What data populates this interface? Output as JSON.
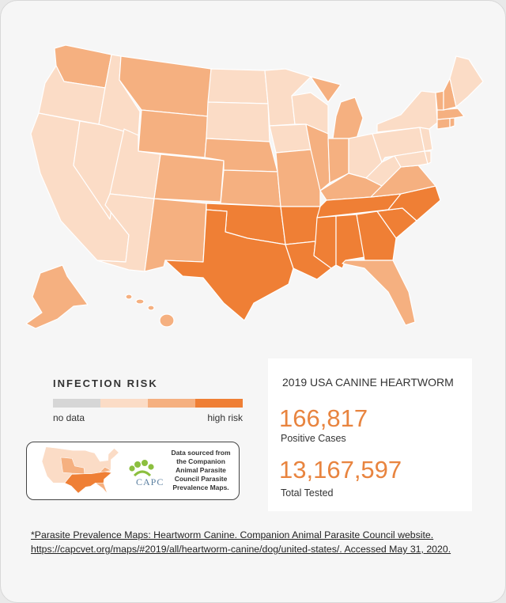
{
  "colors": {
    "no_data": "#d6d6d6",
    "level1": "#fbdcc6",
    "level2": "#f5b080",
    "level3": "#ef7f35",
    "accent": "#e8843f"
  },
  "legend": {
    "title": "INFECTION RISK",
    "low_label": "no data",
    "high_label": "high risk"
  },
  "source": {
    "logo_text": "CAPC",
    "text": "Data sourced from the Companion Animal Parasite Council Parasite Prevalence Maps."
  },
  "stats": {
    "title": "2019 USA CANINE HEARTWORM",
    "positive_cases": "166,817",
    "positive_label": "Positive Cases",
    "total_tested": "13,167,597",
    "total_label": "Total Tested"
  },
  "footnote": {
    "line1": "*Parasite Prevalence Maps: Heartworm Canine. Companion Animal Parasite Council website.",
    "line2": "https://capcvet.org/maps/#2019/all/heartworm-canine/dog/united-states/. Accessed May 31, 2020."
  },
  "map_data": {
    "risk_levels": {
      "WA": 2,
      "OR": 1,
      "CA": 1,
      "NV": 1,
      "ID": 1,
      "MT": 2,
      "WY": 2,
      "UT": 1,
      "AZ": 1,
      "CO": 2,
      "NM": 2,
      "ND": 1,
      "SD": 1,
      "NE": 2,
      "KS": 2,
      "OK": 3,
      "TX": 3,
      "MN": 1,
      "IA": 1,
      "MO": 2,
      "AR": 3,
      "LA": 3,
      "WI": 1,
      "IL": 2,
      "MI": 2,
      "IN": 2,
      "OH": 1,
      "KY": 2,
      "TN": 3,
      "MS": 3,
      "AL": 3,
      "GA": 3,
      "FL": 2,
      "SC": 3,
      "NC": 3,
      "VA": 2,
      "WV": 1,
      "PA": 1,
      "NY": 1,
      "VT": 2,
      "NH": 2,
      "ME": 1,
      "MA": 2,
      "CT": 2,
      "RI": 2,
      "NJ": 1,
      "DE": 1,
      "MD": 1,
      "AK": 2,
      "HI": 2
    }
  }
}
